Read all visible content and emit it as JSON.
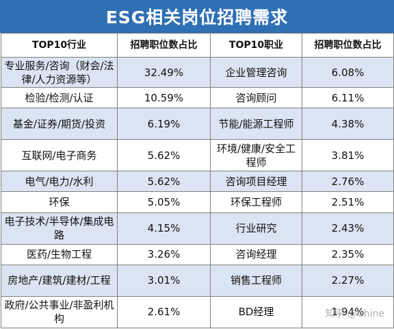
{
  "title": "ESG相关岗位招聘需求",
  "headers": [
    "TOP10行业",
    "招聘职位数占比",
    "TOP10职业",
    "招聘职位数占比"
  ],
  "rows": [
    {
      "industry": "专业服务/咨询（财会/法律/人力资源等）",
      "industry_pct": "32.49%",
      "job": "企业管理咨询",
      "job_pct": "6.08%"
    },
    {
      "industry": "检验/检测/认证",
      "industry_pct": "10.59%",
      "job": "咨询顾问",
      "job_pct": "6.11%"
    },
    {
      "industry": "基金/证券/期货/投资",
      "industry_pct": "6.19%",
      "job": "节能/能源工程师",
      "job_pct": "4.38%"
    },
    {
      "industry": "互联网/电子商务",
      "industry_pct": "5.62%",
      "job": "环境/健康/安全工程师",
      "job_pct": "3.81%"
    },
    {
      "industry": "电气/电力/水利",
      "industry_pct": "5.62%",
      "job": "咨询项目经理",
      "job_pct": "2.76%"
    },
    {
      "industry": "环保",
      "industry_pct": "5.05%",
      "job": "环保工程师",
      "job_pct": "2.51%"
    },
    {
      "industry": "电子技术/半导体/集成电路",
      "industry_pct": "4.15%",
      "job": "行业研究",
      "job_pct": "2.43%"
    },
    {
      "industry": "医药/生物工程",
      "industry_pct": "3.26%",
      "job": "咨询经理",
      "job_pct": "2.35%"
    },
    {
      "industry": "房地产/建筑/建材/工程",
      "industry_pct": "3.01%",
      "job": "销售工程师",
      "job_pct": "2.27%"
    },
    {
      "industry": "政府/公共事业/非盈利机构",
      "industry_pct": "2.61%",
      "job": "BD经理",
      "job_pct": "1.94%"
    }
  ],
  "watermark": "知乎 @Chine",
  "colors": {
    "banner": "#2f6fb3",
    "stripe": "#dbe4f2",
    "border": "#7f7f7f"
  }
}
